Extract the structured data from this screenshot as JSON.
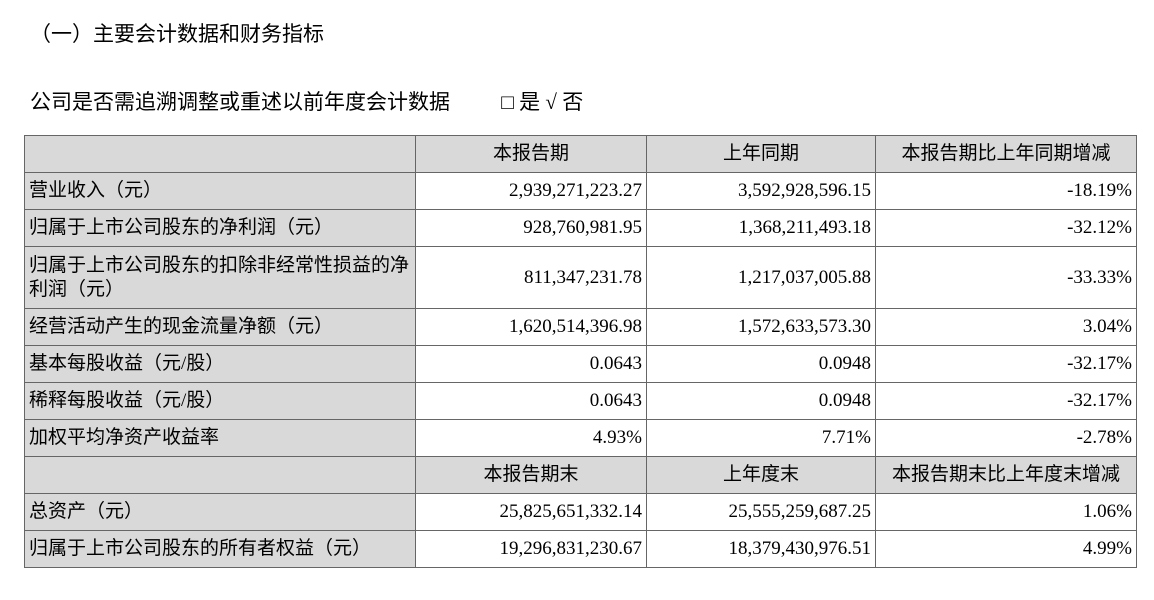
{
  "title": "（一）主要会计数据和财务指标",
  "question": {
    "text": "公司是否需追溯调整或重述以前年度会计数据",
    "options": "□ 是 √ 否"
  },
  "table": {
    "header1": [
      "",
      "本报告期",
      "上年同期",
      "本报告期比上年同期增减"
    ],
    "rows1": [
      [
        "营业收入（元）",
        "2,939,271,223.27",
        "3,592,928,596.15",
        "-18.19%"
      ],
      [
        "归属于上市公司股东的净利润（元）",
        "928,760,981.95",
        "1,368,211,493.18",
        "-32.12%"
      ],
      [
        "归属于上市公司股东的扣除非经常性损益的净利润（元）",
        "811,347,231.78",
        "1,217,037,005.88",
        "-33.33%"
      ],
      [
        "经营活动产生的现金流量净额（元）",
        "1,620,514,396.98",
        "1,572,633,573.30",
        "3.04%"
      ],
      [
        "基本每股收益（元/股）",
        "0.0643",
        "0.0948",
        "-32.17%"
      ],
      [
        "稀释每股收益（元/股）",
        "0.0643",
        "0.0948",
        "-32.17%"
      ],
      [
        "加权平均净资产收益率",
        "4.93%",
        "7.71%",
        "-2.78%"
      ]
    ],
    "header2": [
      "",
      "本报告期末",
      "上年度末",
      "本报告期末比上年度末增减"
    ],
    "rows2": [
      [
        "总资产（元）",
        "25,825,651,332.14",
        "25,555,259,687.25",
        "1.06%"
      ],
      [
        "归属于上市公司股东的所有者权益（元）",
        "19,296,831,230.67",
        "18,379,430,976.51",
        "4.99%"
      ]
    ]
  }
}
